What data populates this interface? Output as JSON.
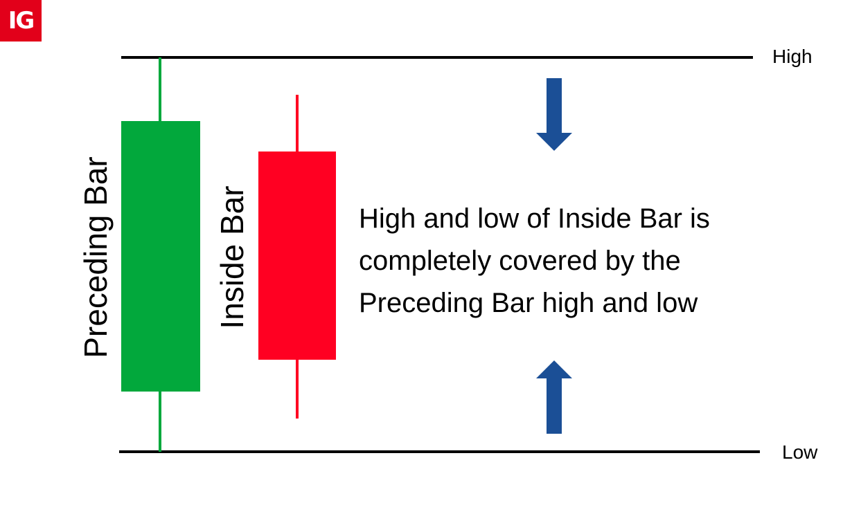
{
  "logo": {
    "text": "IG",
    "color": "#e2001a"
  },
  "levels": {
    "high_label": "High",
    "low_label": "Low"
  },
  "bars": {
    "preceding": {
      "label": "Preceding Bar",
      "color": "#02a83c"
    },
    "inside": {
      "label": "Inside Bar",
      "color": "#ff0022"
    }
  },
  "caption": {
    "lines": [
      "High and low of Inside Bar is",
      "completely covered by the",
      "Preceding Bar high and low"
    ]
  },
  "arrows": {
    "color": "#1b4f96",
    "icons": [
      "down-arrow-icon",
      "up-arrow-icon"
    ]
  }
}
